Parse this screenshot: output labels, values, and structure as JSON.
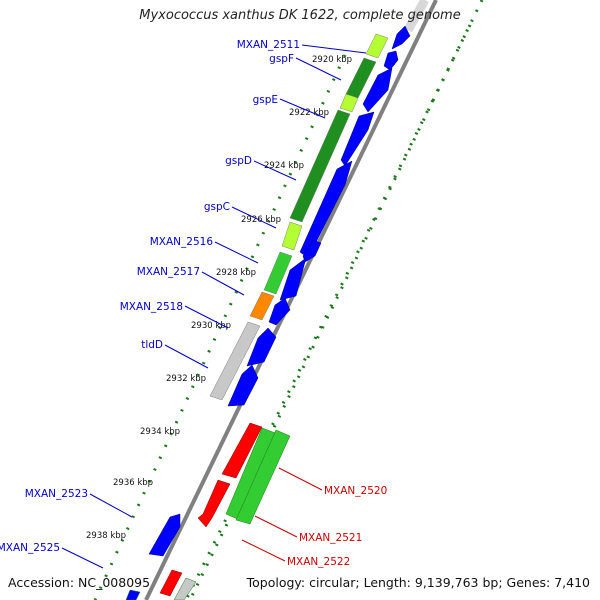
{
  "title": "Myxococcus xanthus DK 1622, complete genome",
  "footer": {
    "accession": "Accession: NC_008095",
    "summary": "Topology: circular; Length: 9,139,763 bp; Genes: 7,410"
  },
  "colors": {
    "backbone": "#808080",
    "gene_forward": "#0000ff",
    "gene_reverse": "#ff0000",
    "feature_green": "#33cc33",
    "feature_dark_green": "#1f8f1f",
    "feature_light_green": "#b3ff33",
    "feature_orange": "#ff8800",
    "feature_gray": "#c8c8c8",
    "tick_color": "#1a7a1a",
    "label_blue": "#0000cc",
    "label_red": "#cc0000"
  },
  "ruler_labels": [
    "2920 kbp",
    "2922 kbp",
    "2924 kbp",
    "2926 kbp",
    "2928 kbp",
    "2930 kbp",
    "2932 kbp",
    "2934 kbp",
    "2936 kbp",
    "2938 kbp"
  ],
  "gene_labels_left": [
    "MXAN_2511",
    "gspF",
    "gspE",
    "gspD",
    "gspC",
    "MXAN_2516",
    "MXAN_2517",
    "MXAN_2518",
    "tldD",
    "MXAN_2523",
    "MXAN_2525"
  ],
  "gene_labels_right": [
    "MXAN_2520",
    "MXAN_2521",
    "MXAN_2522"
  ]
}
